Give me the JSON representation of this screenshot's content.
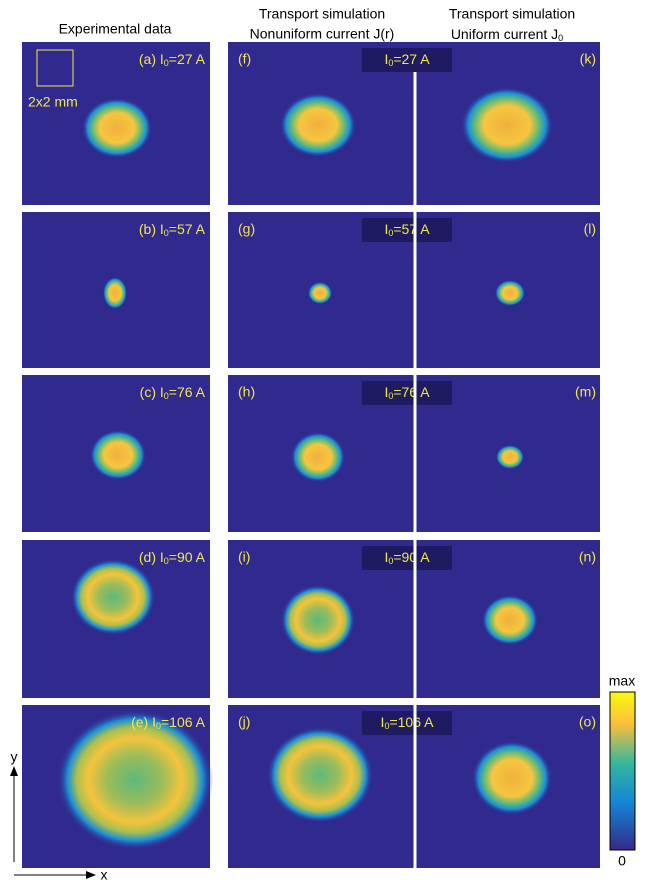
{
  "columns": [
    {
      "title": "Experimental data"
    },
    {
      "title": "Transport simulation",
      "subtitle": "Nonuniform current J(r)"
    },
    {
      "title": "Transport simulation",
      "subtitle": "Uniform current J",
      "subtitle_sub": "0"
    }
  ],
  "scale_label": "2x2 mm",
  "rows": [
    {
      "exp_panel": "(a)",
      "sim_left": "(f)",
      "sim_right": "(k)",
      "current": {
        "symbol": "I",
        "sub": "0",
        "value": "=27 A"
      }
    },
    {
      "exp_panel": "(b)",
      "sim_left": "(g)",
      "sim_right": "(l)",
      "current": {
        "symbol": "I",
        "sub": "0",
        "value": "=57 A"
      }
    },
    {
      "exp_panel": "(c)",
      "sim_left": "(h)",
      "sim_right": "(m)",
      "current": {
        "symbol": "I",
        "sub": "0",
        "value": "=76 A"
      }
    },
    {
      "exp_panel": "(d)",
      "sim_left": "(i)",
      "sim_right": "(n)",
      "current": {
        "symbol": "I",
        "sub": "0",
        "value": "=90 A"
      }
    },
    {
      "exp_panel": "(e)",
      "sim_left": "(j)",
      "sim_right": "(o)",
      "current": {
        "symbol": "I",
        "sub": "0",
        "value": "=106 A"
      }
    }
  ],
  "colorbar": {
    "top": "max",
    "bottom": "0"
  },
  "axes": {
    "y": "y",
    "x": "x"
  }
}
